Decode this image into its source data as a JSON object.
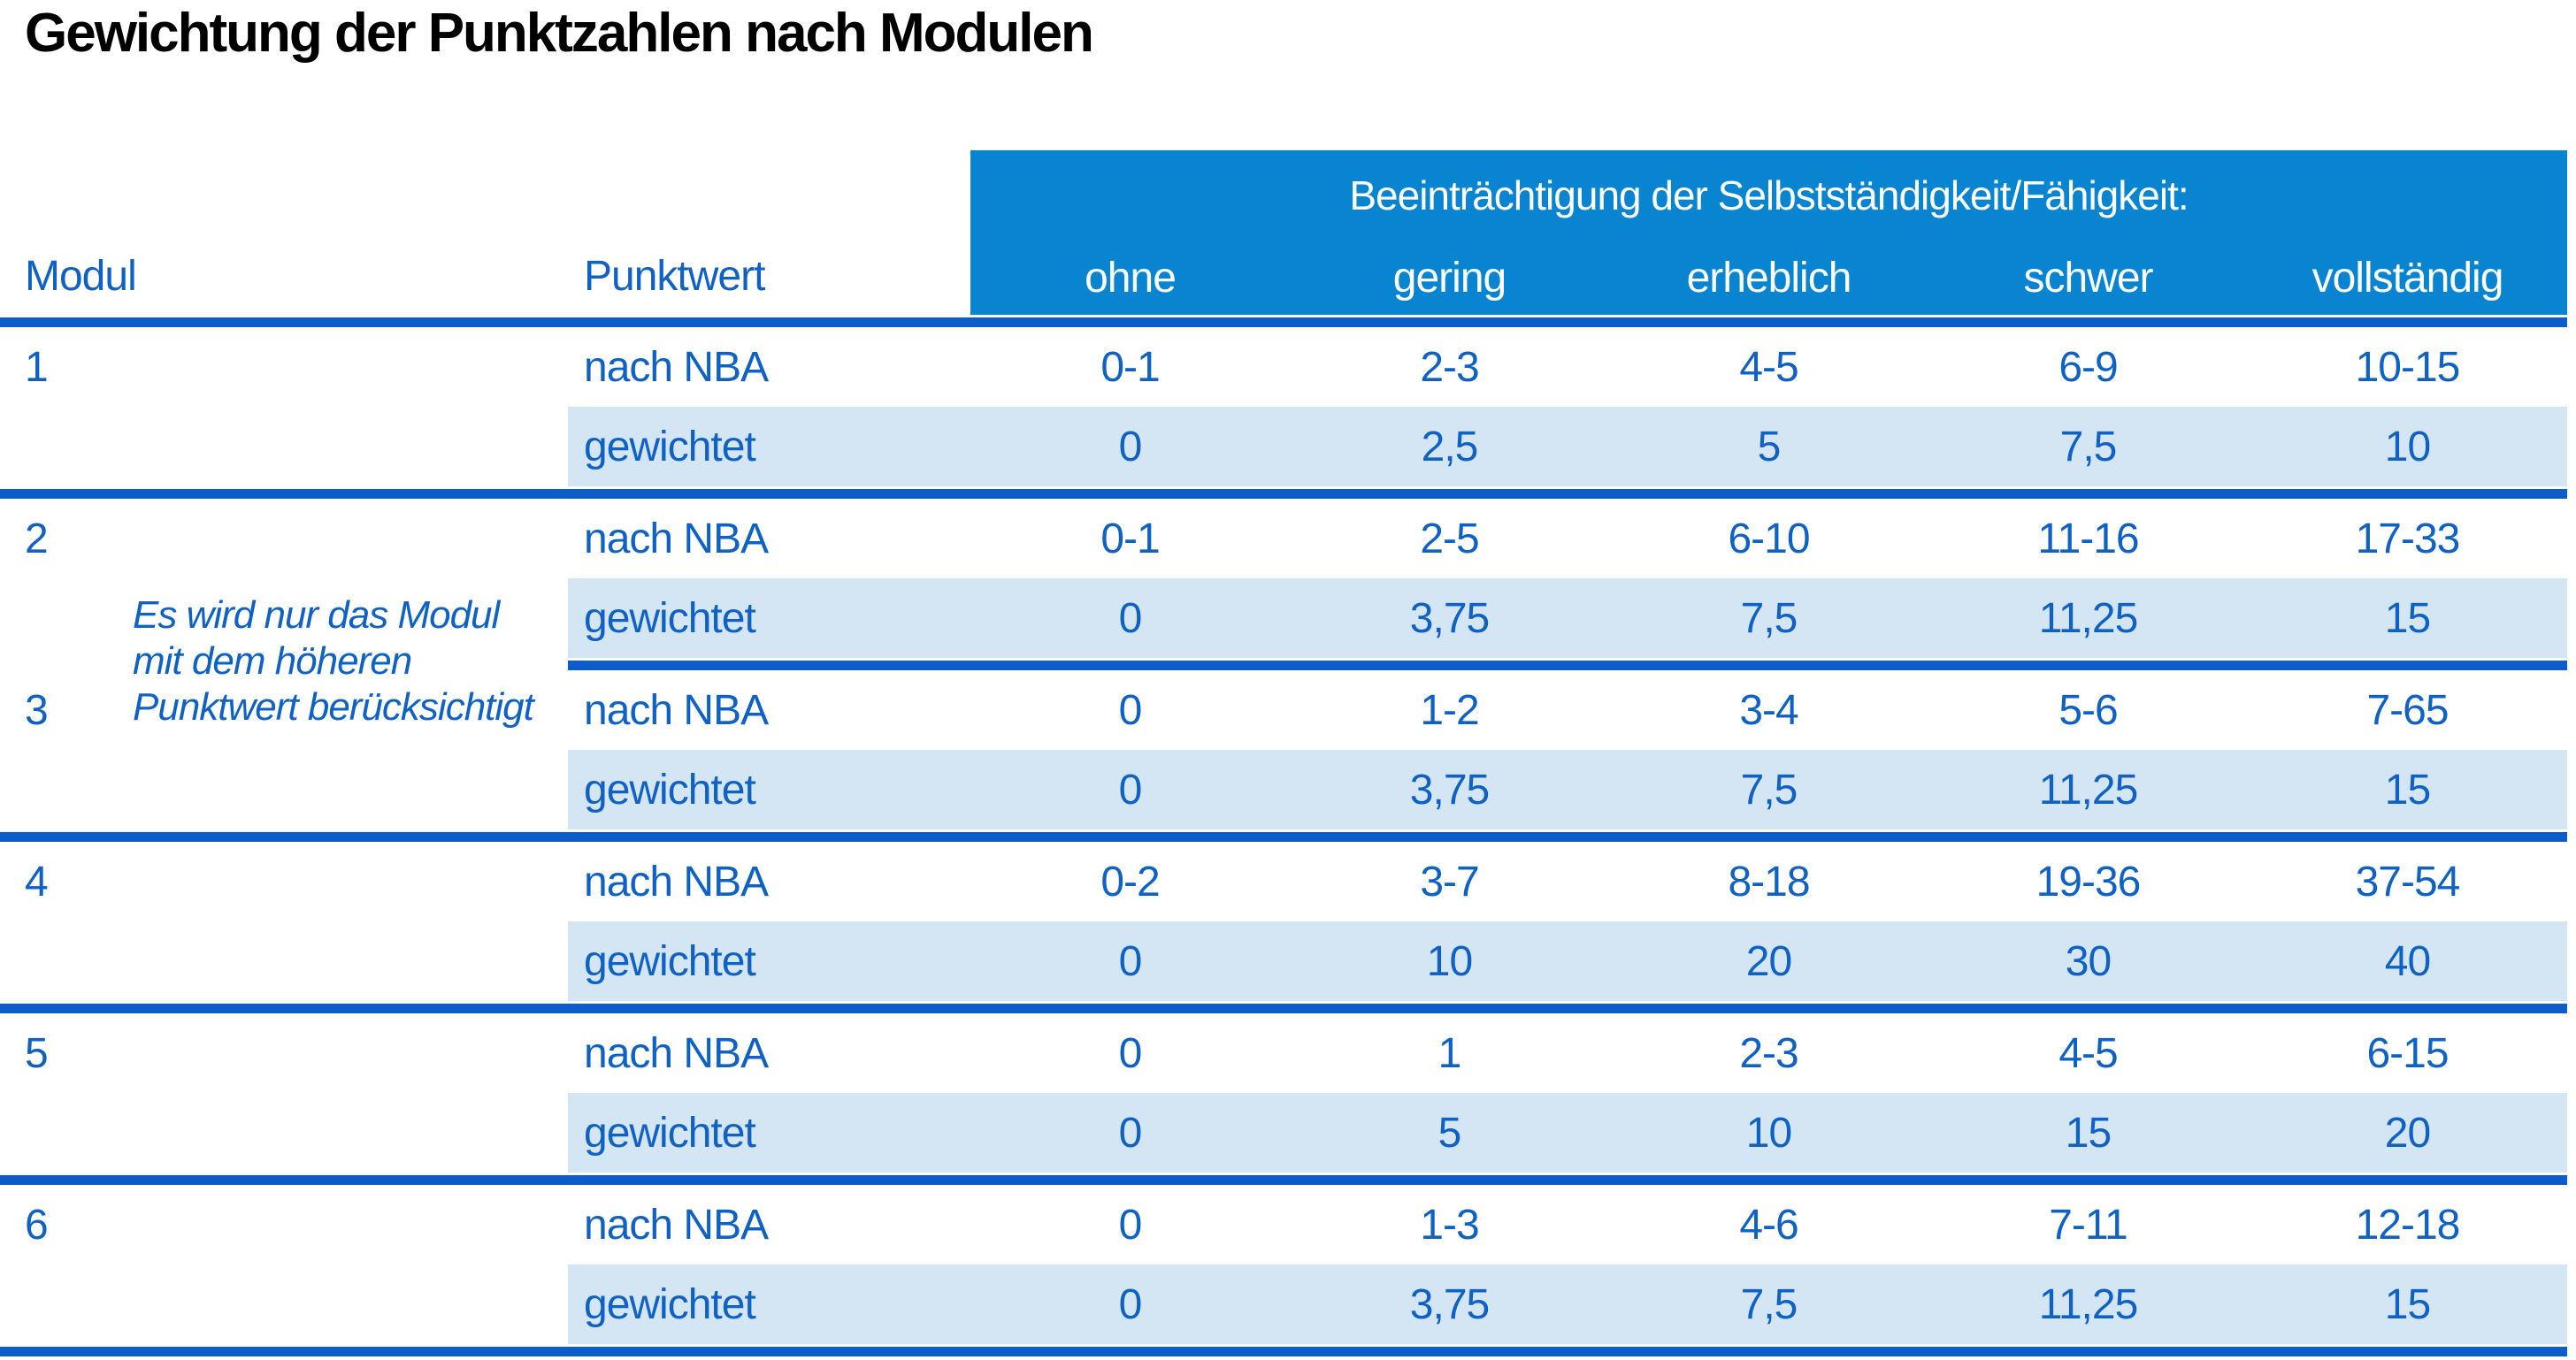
{
  "title": "Gewichtung der Punktzahlen nach Modulen",
  "colors": {
    "header_band": "#0884d1",
    "separator_line": "#0c5cc9",
    "weighted_row_highlight": "#d4e5f3",
    "table_text_blue": "#0f62c4",
    "band_text": "#ffffff",
    "title_text": "#000000",
    "background": "#ffffff"
  },
  "table": {
    "group_header": "Beeinträchtigung der Selbstständigkeit/Fähigkeit:",
    "columns": {
      "modul": "Modul",
      "punktwert": "Punktwert",
      "levels": [
        "ohne",
        "gering",
        "erheblich",
        "schwer",
        "vollständig"
      ]
    },
    "row_labels": {
      "nba": "nach NBA",
      "weighted": "gewichtet"
    },
    "note": {
      "lines": [
        "Es wird nur das Modul",
        "mit dem höheren",
        "Punktwert berücksichtigt"
      ]
    },
    "modules": [
      {
        "id": "1",
        "nba": [
          "0-1",
          "2-3",
          "4-5",
          "6-9",
          "10-15"
        ],
        "weighted": [
          "0",
          "2,5",
          "5",
          "7,5",
          "10"
        ]
      },
      {
        "id": "2",
        "nba": [
          "0-1",
          "2-5",
          "6-10",
          "11-16",
          "17-33"
        ],
        "weighted": [
          "0",
          "3,75",
          "7,5",
          "11,25",
          "15"
        ]
      },
      {
        "id": "3",
        "nba": [
          "0",
          "1-2",
          "3-4",
          "5-6",
          "7-65"
        ],
        "weighted": [
          "0",
          "3,75",
          "7,5",
          "11,25",
          "15"
        ]
      },
      {
        "id": "4",
        "nba": [
          "0-2",
          "3-7",
          "8-18",
          "19-36",
          "37-54"
        ],
        "weighted": [
          "0",
          "10",
          "20",
          "30",
          "40"
        ]
      },
      {
        "id": "5",
        "nba": [
          "0",
          "1",
          "2-3",
          "4-5",
          "6-15"
        ],
        "weighted": [
          "0",
          "5",
          "10",
          "15",
          "20"
        ]
      },
      {
        "id": "6",
        "nba": [
          "0",
          "1-3",
          "4-6",
          "7-11",
          "12-18"
        ],
        "weighted": [
          "0",
          "3,75",
          "7,5",
          "11,25",
          "15"
        ]
      }
    ]
  }
}
